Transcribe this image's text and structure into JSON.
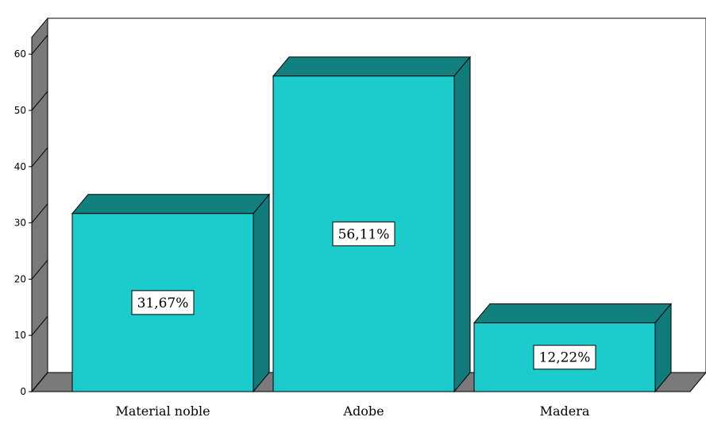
{
  "chart_data": {
    "type": "bar",
    "style": "3d",
    "categories": [
      "Material noble",
      "Adobe",
      "Madera"
    ],
    "values": [
      31.67,
      56.11,
      12.22
    ],
    "data_labels": [
      "31,67%",
      "56,11%",
      "12,22%"
    ],
    "yticks": [
      0,
      10,
      20,
      30,
      40,
      50,
      60
    ],
    "ylim": [
      0,
      63
    ],
    "grid": false,
    "legend": "none",
    "colors": {
      "bar_front": "#1ccccc",
      "bar_top": "#138080",
      "bar_side": "#117a7a",
      "wall": "#7a7a7a",
      "floor": "#7a7a7a",
      "outline": "#000000"
    }
  }
}
